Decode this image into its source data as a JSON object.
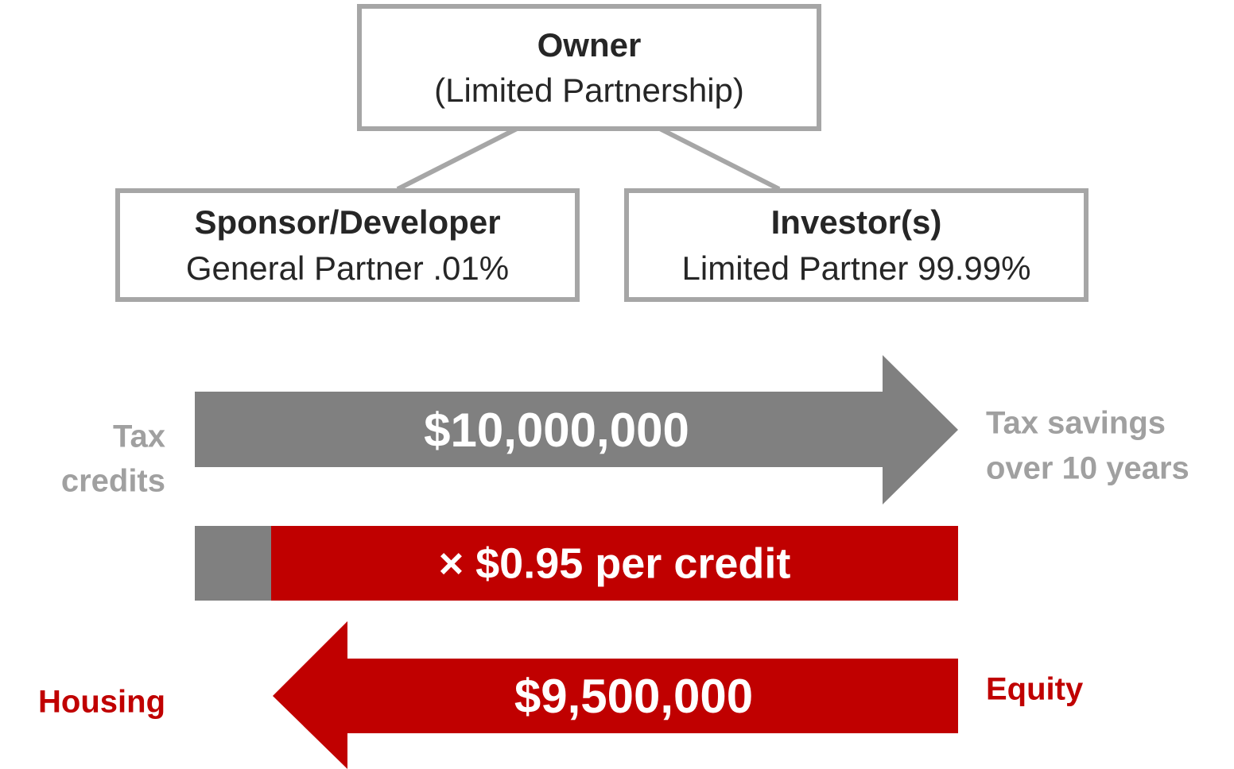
{
  "owner": {
    "title": "Owner",
    "subtitle": "(Limited Partnership)"
  },
  "partners": [
    {
      "title": "Sponsor/Developer",
      "role": "General Partner .01%"
    },
    {
      "title": "Investor(s)",
      "role": "Limited Partner 99.99%"
    }
  ],
  "flows": {
    "credits": {
      "left_lines": [
        "Tax",
        "credits"
      ],
      "amount": "$10,000,000",
      "right_lines": [
        "Tax savings",
        "over 10 years"
      ]
    },
    "price": {
      "label": "× $0.95 per credit"
    },
    "equity": {
      "left": "Housing",
      "amount": "$9,500,000",
      "right": "Equity"
    }
  }
}
